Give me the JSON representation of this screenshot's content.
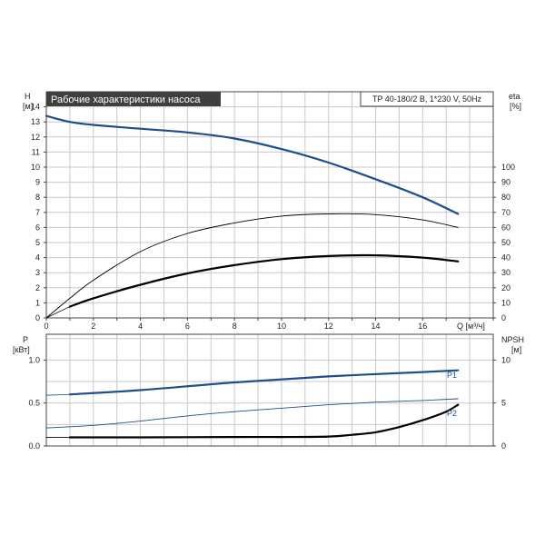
{
  "colors": {
    "curve_blue": "#1f4e8c",
    "curve_black": "#000000",
    "title_bg": "#3f3f3f",
    "grid": "#c8c8c8"
  },
  "chart_data": [
    {
      "type": "line",
      "title": "Рабочие характеристики насоса",
      "model_label": "TP 40-180/2 B, 1*230 V, 50Hz",
      "xlabel": "Q [м³/ч]",
      "xlim": [
        0,
        19
      ],
      "xticks": [
        0,
        2,
        4,
        6,
        8,
        10,
        12,
        14,
        16
      ],
      "grid": true,
      "y_left": {
        "label_line1": "H",
        "label_line2": "[м]",
        "lim": [
          0,
          15
        ],
        "ticks": [
          0,
          1,
          2,
          3,
          4,
          5,
          6,
          7,
          8,
          9,
          10,
          11,
          12,
          13,
          14
        ]
      },
      "y_right": {
        "label_line1": "eta",
        "label_line2": "[%]",
        "lim": [
          0,
          150
        ],
        "ticks": [
          0,
          10,
          20,
          30,
          40,
          50,
          60,
          70,
          80,
          90,
          100
        ]
      },
      "series": [
        {
          "axis": "left",
          "color": "#1f4e8c",
          "width": 2.2,
          "x": [
            0,
            1,
            2,
            4,
            6,
            8,
            10,
            12,
            14,
            16,
            17.5
          ],
          "y": [
            13.4,
            13.0,
            12.8,
            12.55,
            12.3,
            11.9,
            11.2,
            10.3,
            9.2,
            8.0,
            6.9
          ]
        },
        {
          "axis": "left",
          "color": "#1f4e8c",
          "width": 0.8,
          "x": [
            0,
            1
          ],
          "y": [
            13.4,
            13.0
          ]
        },
        {
          "axis": "right",
          "color": "#000000",
          "width": 0.9,
          "x": [
            0,
            1,
            2,
            4,
            6,
            8,
            10,
            12,
            14,
            16,
            17.5
          ],
          "y": [
            0,
            13,
            25,
            44,
            56,
            63,
            67.5,
            69,
            68.5,
            65,
            60
          ]
        },
        {
          "axis": "left",
          "color": "#000000",
          "width": 2.2,
          "x": [
            1,
            2,
            4,
            6,
            8,
            10,
            12,
            14,
            16,
            17.5
          ],
          "y": [
            0.75,
            1.3,
            2.2,
            2.95,
            3.5,
            3.9,
            4.1,
            4.15,
            4.0,
            3.75
          ]
        },
        {
          "axis": "left",
          "color": "#000000",
          "width": 0.8,
          "x": [
            0,
            1
          ],
          "y": [
            0,
            0.75
          ]
        }
      ]
    },
    {
      "type": "line",
      "xlim": [
        0,
        19
      ],
      "grid": true,
      "y_left": {
        "label_line1": "P",
        "label_line2": "[кВт]",
        "lim": [
          0,
          1.3
        ],
        "ticks": [
          0.0,
          0.5,
          1.0
        ],
        "tick_labels": [
          "0.0",
          "0.5",
          "1.0"
        ]
      },
      "y_right": {
        "label_line1": "NPSH",
        "label_line2": "[м]",
        "lim": [
          0,
          13
        ],
        "ticks": [
          0,
          5,
          10
        ],
        "tick_labels": [
          "0",
          "5",
          "10"
        ]
      },
      "series": [
        {
          "name": "P1",
          "axis": "left",
          "color": "#1f4e8c",
          "width": 2.2,
          "x": [
            1,
            4,
            8,
            12,
            16,
            17.5
          ],
          "y": [
            0.6,
            0.65,
            0.74,
            0.81,
            0.86,
            0.88
          ]
        },
        {
          "axis": "left",
          "color": "#1f4e8c",
          "width": 0.8,
          "x": [
            0,
            1
          ],
          "y": [
            0.59,
            0.6
          ]
        },
        {
          "name": "P2",
          "axis": "left",
          "color": "#1f4e8c",
          "width": 0.9,
          "x": [
            0,
            2,
            4,
            6,
            8,
            10,
            12,
            14,
            16,
            17.5
          ],
          "y": [
            0.21,
            0.24,
            0.29,
            0.35,
            0.4,
            0.44,
            0.48,
            0.51,
            0.53,
            0.55
          ]
        },
        {
          "axis": "right",
          "color": "#000000",
          "width": 2.2,
          "x": [
            1,
            4,
            8,
            10,
            12,
            13,
            14,
            15,
            16,
            17,
            17.5
          ],
          "y": [
            1.0,
            1.0,
            1.05,
            1.05,
            1.1,
            1.3,
            1.6,
            2.2,
            3.0,
            4.0,
            4.8
          ]
        },
        {
          "axis": "right",
          "color": "#000000",
          "width": 0.8,
          "x": [
            0,
            1
          ],
          "y": [
            1.0,
            1.0
          ]
        }
      ]
    }
  ]
}
